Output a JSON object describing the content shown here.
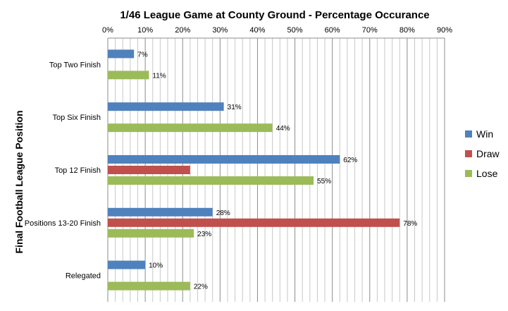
{
  "chart_data": {
    "type": "bar",
    "orientation": "horizontal",
    "title": "1/46 League Game at County Ground - Percentage Occurance",
    "xlabel": "",
    "ylabel": "Final Football League Position",
    "xlim": [
      0,
      90
    ],
    "x_ticks": [
      "0%",
      "10%",
      "20%",
      "30%",
      "40%",
      "50%",
      "60%",
      "70%",
      "80%",
      "90%"
    ],
    "grid": true,
    "legend_position": "right",
    "categories": [
      "Top Two Finish",
      "Top Six Finish",
      "Top 12 Finish",
      "Positions 13-20 Finish",
      "Relegated"
    ],
    "series": [
      {
        "name": "Win",
        "color": "#4f81bd",
        "values": [
          7,
          31,
          62,
          28,
          10
        ],
        "labels": [
          "7%",
          "31%",
          "62%",
          "28%",
          "10%"
        ]
      },
      {
        "name": "Draw",
        "color": "#c0504d",
        "values": [
          null,
          null,
          22,
          78,
          null
        ],
        "labels": [
          "",
          "",
          "",
          "78%",
          ""
        ]
      },
      {
        "name": "Lose",
        "color": "#9bbb59",
        "values": [
          11,
          44,
          55,
          23,
          22
        ],
        "labels": [
          "11%",
          "44%",
          "55%",
          "23%",
          "22%"
        ]
      }
    ]
  }
}
